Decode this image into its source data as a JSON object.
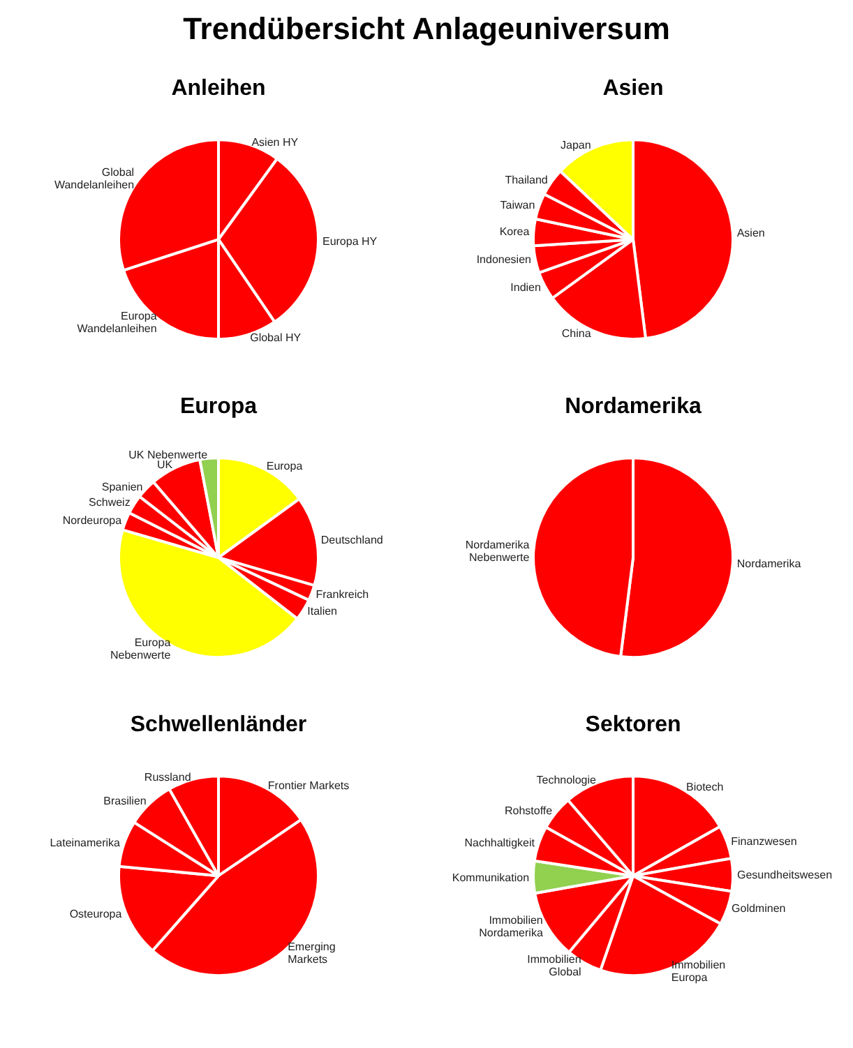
{
  "chart_data": [
    {
      "type": "other",
      "title": "Trendübersicht Anlageuniversum"
    },
    {
      "type": "pie",
      "title": "Anleihen",
      "categories": [
        "Asien HY",
        "Europa HY",
        "Global HY",
        "Europa Wandelanleihen",
        "Global Wandelanleihen"
      ],
      "values": [
        10,
        30.5,
        9.5,
        20,
        30
      ],
      "colors": [
        "#ff0000",
        "#ff0000",
        "#ff0000",
        "#ff0000",
        "#ff0000"
      ]
    },
    {
      "type": "pie",
      "title": "Asien",
      "categories": [
        "Asien",
        "China",
        "Indien",
        "Indonesien",
        "Korea",
        "Taiwan",
        "Thailand",
        "Japan"
      ],
      "values": [
        48,
        17,
        4.6,
        4.4,
        4.3,
        4.2,
        4.5,
        13
      ],
      "colors": [
        "#ff0000",
        "#ff0000",
        "#ff0000",
        "#ff0000",
        "#ff0000",
        "#ff0000",
        "#ff0000",
        "#ffff00"
      ]
    },
    {
      "type": "pie",
      "title": "Europa",
      "categories": [
        "Europa",
        "Deutschland",
        "Frankreich",
        "Italien",
        "Europa Nebenwerte",
        "Nordeuropa",
        "Schweiz",
        "Spanien",
        "UK",
        "UK Nebenwerte"
      ],
      "values": [
        15,
        14.5,
        2.5,
        3.5,
        44,
        2.9,
        3.1,
        3.2,
        8.3,
        3
      ],
      "colors": [
        "#ffff00",
        "#ff0000",
        "#ff0000",
        "#ff0000",
        "#ffff00",
        "#ff0000",
        "#ff0000",
        "#ff0000",
        "#ff0000",
        "#92d050"
      ]
    },
    {
      "type": "pie",
      "title": "Nordamerika",
      "categories": [
        "Nordamerika",
        "Nordamerika Nebenwerte"
      ],
      "values": [
        52,
        48
      ],
      "colors": [
        "#ff0000",
        "#ff0000"
      ]
    },
    {
      "type": "pie",
      "title": "Schwellenländer",
      "categories": [
        "Frontier Markets",
        "Emerging Markets",
        "Osteuropa",
        "Lateinamerika",
        "Brasilien",
        "Russland"
      ],
      "values": [
        15.5,
        46,
        15,
        7.5,
        7.8,
        8.2
      ],
      "colors": [
        "#ff0000",
        "#ff0000",
        "#ff0000",
        "#ff0000",
        "#ff0000",
        "#ff0000"
      ]
    },
    {
      "type": "pie",
      "title": "Sektoren",
      "categories": [
        "Biotech",
        "Finanzwesen",
        "Gesundheitswesen",
        "Goldminen",
        "Immobilien Europa",
        "Immobilien Global",
        "Immobilien Nordamerika",
        "Kommunikation",
        "Nachhaltigkeit",
        "Rohstoffe",
        "Technologie"
      ],
      "values": [
        16.8,
        5.4,
        5.3,
        5.5,
        22.3,
        5.8,
        11.1,
        5.2,
        5.7,
        5.6,
        11.3
      ],
      "colors": [
        "#ff0000",
        "#ff0000",
        "#ff0000",
        "#ff0000",
        "#ff0000",
        "#ff0000",
        "#ff0000",
        "#92d050",
        "#ff0000",
        "#ff0000",
        "#ff0000"
      ]
    }
  ]
}
